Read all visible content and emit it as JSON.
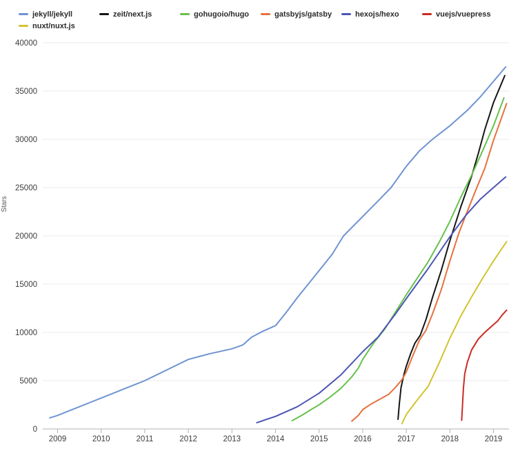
{
  "chart_data": {
    "type": "line",
    "title": "",
    "xlabel": "",
    "ylabel": "Stars",
    "ylim": [
      0,
      40000
    ],
    "xlim": [
      2008.66,
      2019.36
    ],
    "grid": "horizontal",
    "legend_position": "top",
    "x_ticks": [
      2009,
      2010,
      2011,
      2012,
      2013,
      2014,
      2015,
      2016,
      2017,
      2018,
      2019
    ],
    "y_ticks": [
      0,
      5000,
      10000,
      15000,
      20000,
      25000,
      30000,
      35000,
      40000
    ],
    "series": [
      {
        "name": "jekyll/jekyll",
        "color": "#6f93d2",
        "points": [
          [
            2008.82,
            1150
          ],
          [
            2009,
            1400
          ],
          [
            2009.25,
            1850
          ],
          [
            2009.5,
            2300
          ],
          [
            2009.75,
            2750
          ],
          [
            2010,
            3200
          ],
          [
            2010.25,
            3650
          ],
          [
            2010.5,
            4100
          ],
          [
            2010.75,
            4550
          ],
          [
            2011,
            5000
          ],
          [
            2011.25,
            5550
          ],
          [
            2011.5,
            6100
          ],
          [
            2011.75,
            6650
          ],
          [
            2012,
            7200
          ],
          [
            2012.25,
            7500
          ],
          [
            2012.5,
            7800
          ],
          [
            2012.75,
            8050
          ],
          [
            2013,
            8300
          ],
          [
            2013.25,
            8700
          ],
          [
            2013.45,
            9500
          ],
          [
            2013.7,
            10100
          ],
          [
            2014,
            10700
          ],
          [
            2014.25,
            12100
          ],
          [
            2014.5,
            13600
          ],
          [
            2014.75,
            15000
          ],
          [
            2015,
            16400
          ],
          [
            2015.3,
            18100
          ],
          [
            2015.56,
            20000
          ],
          [
            2015.78,
            21000
          ],
          [
            2016,
            22000
          ],
          [
            2016.35,
            23600
          ],
          [
            2016.65,
            25000
          ],
          [
            2017,
            27200
          ],
          [
            2017.3,
            28800
          ],
          [
            2017.6,
            30000
          ],
          [
            2018,
            31400
          ],
          [
            2018.4,
            33000
          ],
          [
            2018.7,
            34400
          ],
          [
            2019,
            36000
          ],
          [
            2019.28,
            37500
          ]
        ]
      },
      {
        "name": "zeit/next.js",
        "color": "#141414",
        "points": [
          [
            2016.81,
            1000
          ],
          [
            2016.84,
            2600
          ],
          [
            2016.88,
            4300
          ],
          [
            2016.95,
            5700
          ],
          [
            2017,
            6500
          ],
          [
            2017.1,
            7800
          ],
          [
            2017.2,
            8900
          ],
          [
            2017.32,
            9700
          ],
          [
            2017.45,
            11300
          ],
          [
            2017.6,
            13600
          ],
          [
            2017.8,
            16400
          ],
          [
            2018,
            19500
          ],
          [
            2018.25,
            23000
          ],
          [
            2018.5,
            26200
          ],
          [
            2018.65,
            28500
          ],
          [
            2018.8,
            31000
          ],
          [
            2019,
            33800
          ],
          [
            2019.26,
            36600
          ]
        ]
      },
      {
        "name": "gohugoio/hugo",
        "color": "#66c14c",
        "points": [
          [
            2014.38,
            860
          ],
          [
            2014.6,
            1400
          ],
          [
            2014.85,
            2100
          ],
          [
            2015,
            2500
          ],
          [
            2015.25,
            3300
          ],
          [
            2015.5,
            4200
          ],
          [
            2015.75,
            5400
          ],
          [
            2015.9,
            6300
          ],
          [
            2016,
            7200
          ],
          [
            2016.25,
            8900
          ],
          [
            2016.5,
            10300
          ],
          [
            2016.75,
            12100
          ],
          [
            2017,
            13900
          ],
          [
            2017.25,
            15600
          ],
          [
            2017.5,
            17300
          ],
          [
            2017.75,
            19300
          ],
          [
            2018,
            21500
          ],
          [
            2018.25,
            24000
          ],
          [
            2018.5,
            26300
          ],
          [
            2018.75,
            28800
          ],
          [
            2019,
            31400
          ],
          [
            2019.24,
            34300
          ]
        ]
      },
      {
        "name": "gatsbyjs/gatsby",
        "color": "#e4713c",
        "points": [
          [
            2015.75,
            800
          ],
          [
            2015.9,
            1400
          ],
          [
            2016,
            2000
          ],
          [
            2016.2,
            2600
          ],
          [
            2016.4,
            3100
          ],
          [
            2016.6,
            3600
          ],
          [
            2016.75,
            4300
          ],
          [
            2016.9,
            5100
          ],
          [
            2017,
            5900
          ],
          [
            2017.15,
            7600
          ],
          [
            2017.3,
            9200
          ],
          [
            2017.45,
            10200
          ],
          [
            2017.6,
            11900
          ],
          [
            2017.8,
            14400
          ],
          [
            2018,
            17400
          ],
          [
            2018.2,
            20200
          ],
          [
            2018.36,
            22100
          ],
          [
            2018.6,
            24800
          ],
          [
            2018.8,
            27000
          ],
          [
            2019,
            29900
          ],
          [
            2019.3,
            33700
          ]
        ]
      },
      {
        "name": "hexojs/hexo",
        "color": "#4c55b4",
        "points": [
          [
            2013.57,
            650
          ],
          [
            2014,
            1300
          ],
          [
            2014.5,
            2300
          ],
          [
            2015,
            3700
          ],
          [
            2015.5,
            5600
          ],
          [
            2016,
            8000
          ],
          [
            2016.35,
            9500
          ],
          [
            2016.75,
            11900
          ],
          [
            2017,
            13500
          ],
          [
            2017.5,
            16600
          ],
          [
            2018,
            19900
          ],
          [
            2018.36,
            22100
          ],
          [
            2018.7,
            23800
          ],
          [
            2019,
            25000
          ],
          [
            2019.28,
            26100
          ]
        ]
      },
      {
        "name": "vuejs/vuepress",
        "color": "#cb2a22",
        "points": [
          [
            2018.27,
            900
          ],
          [
            2018.29,
            2500
          ],
          [
            2018.31,
            4200
          ],
          [
            2018.34,
            5700
          ],
          [
            2018.4,
            6900
          ],
          [
            2018.5,
            8200
          ],
          [
            2018.65,
            9300
          ],
          [
            2018.8,
            10000
          ],
          [
            2019,
            10800
          ],
          [
            2019.1,
            11200
          ],
          [
            2019.2,
            11800
          ],
          [
            2019.3,
            12300
          ]
        ]
      },
      {
        "name": "nuxt/nuxt.js",
        "color": "#d2c32e",
        "points": [
          [
            2016.9,
            550
          ],
          [
            2017,
            1500
          ],
          [
            2017.25,
            3000
          ],
          [
            2017.5,
            4400
          ],
          [
            2017.75,
            6800
          ],
          [
            2018,
            9400
          ],
          [
            2018.25,
            11700
          ],
          [
            2018.5,
            13700
          ],
          [
            2018.75,
            15600
          ],
          [
            2019,
            17400
          ],
          [
            2019.3,
            19400
          ]
        ]
      }
    ]
  },
  "axis_colors": {
    "grid": "#e8e8e8",
    "axis_line": "#b0b0b0",
    "tick_text": "#3c3c3c",
    "y_title": "#555555"
  }
}
